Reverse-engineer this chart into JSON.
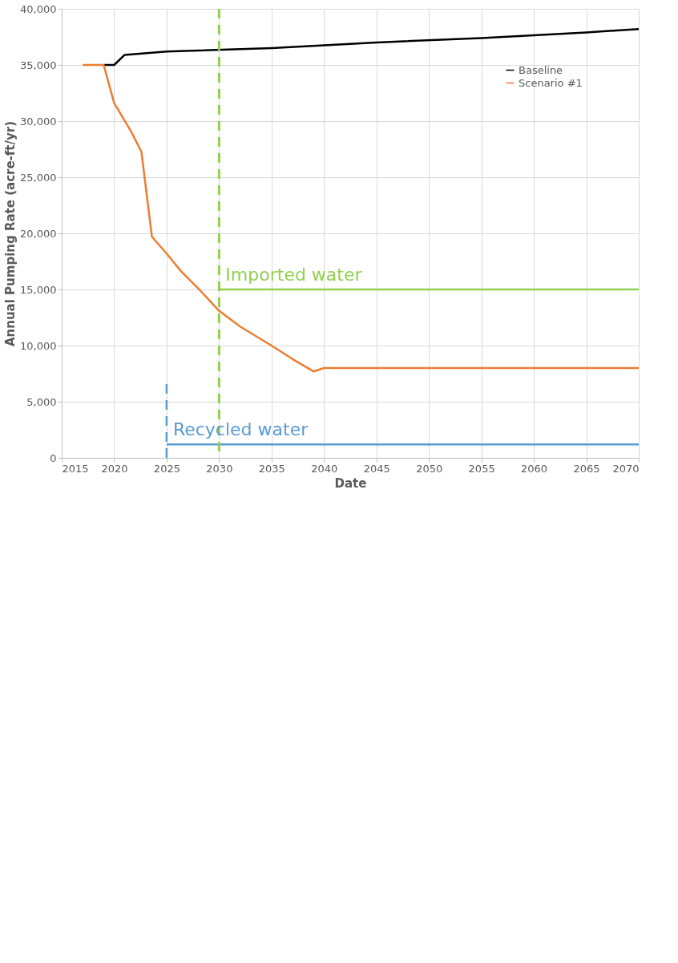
{
  "chart_data": {
    "type": "line",
    "xlabel": "Date",
    "ylabel": "Annual Pumping Rate (acre-ft/yr)",
    "xlim": [
      2015,
      2070
    ],
    "xticks": [
      2015,
      2020,
      2025,
      2030,
      2035,
      2040,
      2045,
      2050,
      2055,
      2060,
      2065,
      2070
    ],
    "ylim": [
      0,
      40000
    ],
    "yticks": [
      {
        "value": 0,
        "label": "0"
      },
      {
        "value": 5000,
        "label": "5,000"
      },
      {
        "value": 10000,
        "label": "10,000"
      },
      {
        "value": 15000,
        "label": "15,000"
      },
      {
        "value": 20000,
        "label": "20,000"
      },
      {
        "value": 25000,
        "label": "25,000"
      },
      {
        "value": 30000,
        "label": "30,000"
      },
      {
        "value": 35000,
        "label": "35,000"
      },
      {
        "value": 40000,
        "label": "40,000"
      }
    ],
    "grid": true,
    "legend": "top right",
    "line_style": "solid",
    "series": [
      {
        "name": "Baseline",
        "color": "#000000",
        "x": [
          2019,
          2020,
          2021,
          2025,
          2035,
          2045,
          2055,
          2065,
          2070
        ],
        "values": [
          35000,
          35000,
          35900,
          36200,
          36500,
          37000,
          37400,
          37900,
          38200
        ]
      },
      {
        "name": "Scenario #1",
        "color": "#ed7d31",
        "x": [
          2017,
          2019,
          2020,
          2021.6,
          2022.6,
          2023.6,
          2025,
          2026.4,
          2028,
          2030,
          2032,
          2035,
          2037,
          2039,
          2040,
          2070
        ],
        "values": [
          35000,
          35000,
          31600,
          29100,
          27250,
          19700,
          18200,
          16600,
          15100,
          13100,
          11700,
          10000,
          8800,
          7700,
          8000,
          8000
        ]
      },
      {
        "color": "#92d050",
        "x": [
          2030,
          2070
        ],
        "values": [
          15000,
          15000
        ]
      },
      {
        "color": "#5b9bd5",
        "x": [
          2025,
          2070
        ],
        "values": [
          1200,
          1200
        ]
      },
      {
        "color": "#5b9bd5",
        "x": [
          2025,
          2025
        ],
        "values": [
          0,
          6800
        ],
        "line_style": "dashed"
      }
    ],
    "ref_lines": [
      {
        "axis": "x",
        "value": 2030,
        "color": "#92d050",
        "line_style": "dashed"
      }
    ],
    "annotations": [
      "Imported water",
      "Recycled water"
    ]
  }
}
